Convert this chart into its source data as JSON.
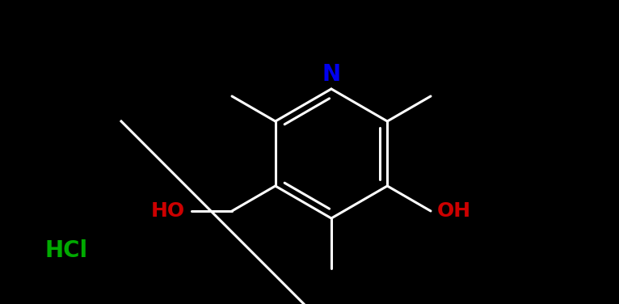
{
  "background_color": "#000000",
  "N_color": "#0000EE",
  "HO_color": "#CC0000",
  "HCl_color": "#00AA00",
  "bond_color": "#FFFFFF",
  "figsize": [
    7.66,
    3.76
  ],
  "dpi": 100,
  "N_label": "N",
  "HO_left_label": "HO",
  "HO_right_label": "OH",
  "HCl_label": "HCl"
}
